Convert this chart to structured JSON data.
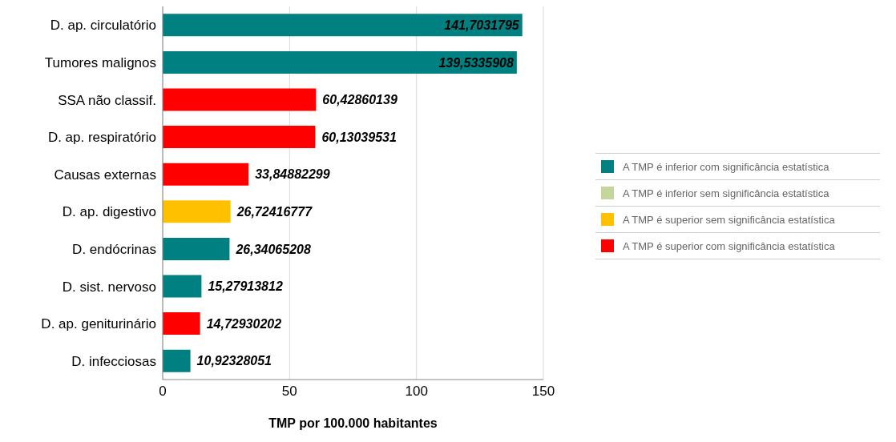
{
  "chart_data": {
    "type": "bar",
    "orientation": "horizontal",
    "stacked": true,
    "xlabel": "TMP por 100.000 habitantes",
    "categories": [
      "D. ap. circulatório",
      "Tumores malignos",
      "SSA não classif.",
      "D. ap. respiratório",
      "Causas externas",
      "D. ap. digestivo",
      "D. endócrinas",
      "D. sist. nervoso",
      "D. ap. geniturinário",
      "D. infecciosas"
    ],
    "series": [
      {
        "name": "A TMP é inferior com significância estatística",
        "color": "#008080",
        "values": [
          141.7031795,
          139.5335908,
          null,
          null,
          null,
          null,
          26.34065208,
          15.27913812,
          null,
          10.92328051
        ],
        "value_labels": [
          "141,7031795",
          "139,5335908",
          null,
          null,
          null,
          null,
          "26,34065208",
          "15,27913812",
          null,
          "10,92328051"
        ]
      },
      {
        "name": "A TMP é inferior sem significância estatística",
        "color": "#c3d69b",
        "values": [
          null,
          null,
          null,
          null,
          null,
          null,
          null,
          null,
          null,
          null
        ],
        "value_labels": [
          null,
          null,
          null,
          null,
          null,
          null,
          null,
          null,
          null,
          null
        ]
      },
      {
        "name": "A TMP é superior sem significância estatística",
        "color": "#ffc000",
        "values": [
          null,
          null,
          null,
          null,
          null,
          26.72416777,
          null,
          null,
          null,
          null
        ],
        "value_labels": [
          null,
          null,
          null,
          null,
          null,
          "26,72416777",
          null,
          null,
          null,
          null
        ]
      },
      {
        "name": "A TMP é superior com significância estatística",
        "color": "#ff0000",
        "values": [
          null,
          null,
          60.42860139,
          60.13039531,
          33.84882299,
          null,
          null,
          null,
          14.72930202,
          null
        ],
        "value_labels": [
          null,
          null,
          "60,42860139",
          "60,13039531",
          "33,84882299",
          null,
          null,
          null,
          "14,72930202",
          null
        ]
      }
    ],
    "xlim": [
      0,
      150
    ],
    "xticks": [
      0,
      50,
      100,
      150
    ],
    "grid": "x",
    "legend": "right"
  }
}
